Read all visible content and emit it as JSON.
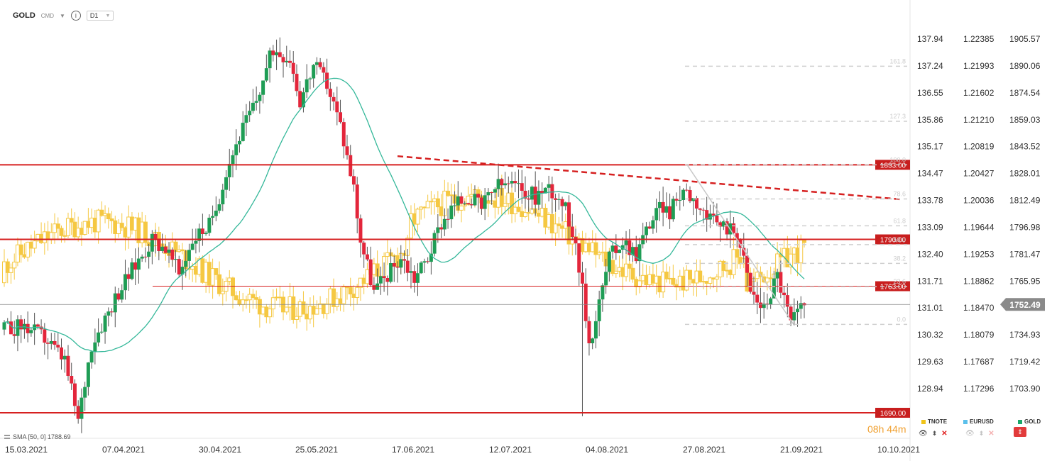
{
  "header": {
    "symbol": "GOLD",
    "exchange": "CMD",
    "timeframe": "D1"
  },
  "axes": {
    "col1": [
      "137.94",
      "137.24",
      "136.55",
      "135.86",
      "135.17",
      "134.47",
      "133.78",
      "133.09",
      "132.40",
      "131.71",
      "131.01",
      "130.32",
      "129.63",
      "128.94"
    ],
    "col2": [
      "1.22385",
      "1.21993",
      "1.21602",
      "1.21210",
      "1.20819",
      "1.20427",
      "1.20036",
      "1.19644",
      "1.19253",
      "1.18862",
      "1.18470",
      "1.18079",
      "1.17687",
      "1.17296"
    ],
    "col3": [
      "1905.57",
      "1890.06",
      "1874.54",
      "1859.03",
      "1843.52",
      "1828.01",
      "1812.49",
      "1796.98",
      "1781.47",
      "1765.95",
      "1750.44",
      "1734.93",
      "1719.42",
      "1703.90"
    ],
    "price_min": 1690,
    "price_max": 1905.57,
    "current_price": "1752.49",
    "dates": [
      "15.03.2021",
      "07.04.2021",
      "30.04.2021",
      "25.05.2021",
      "17.06.2021",
      "12.07.2021",
      "04.08.2021",
      "27.08.2021",
      "21.09.2021",
      "10.10.2021"
    ]
  },
  "levels": [
    {
      "label": "1833.00",
      "value": 1833
    },
    {
      "label": "1790.00",
      "value": 1790
    },
    {
      "label": "1763.00",
      "value": 1763
    },
    {
      "label": "1690.00",
      "value": 1690
    }
  ],
  "fib": {
    "levels": [
      "161.8",
      "127.3",
      "100.0",
      "78.6",
      "61.8",
      "50.0",
      "38.2",
      "23.6",
      "0.0"
    ],
    "high": 1833,
    "low": 1741
  },
  "sma_label": "SMA [50, 0] 1788.69",
  "timer": {
    "hours": "08",
    "h": "h",
    "minutes": "44",
    "m": "m"
  },
  "legend": [
    {
      "name": "TNOTE",
      "color": "#f0c419"
    },
    {
      "name": "EURUSD",
      "color": "#5bc0eb"
    },
    {
      "name": "GOLD",
      "color": "#1ba86a"
    }
  ],
  "colors": {
    "up": "#1f9d55",
    "down": "#e3263b",
    "tnote": "#f5c842",
    "sma": "#35b89a",
    "level": "#d62020"
  }
}
